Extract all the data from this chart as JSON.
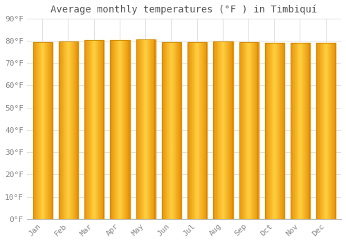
{
  "title": "Average monthly temperatures (°F ) in Timbiquí",
  "months": [
    "Jan",
    "Feb",
    "Mar",
    "Apr",
    "May",
    "Jun",
    "Jul",
    "Aug",
    "Sep",
    "Oct",
    "Nov",
    "Dec"
  ],
  "values": [
    79.3,
    79.7,
    80.4,
    80.4,
    80.6,
    79.5,
    79.3,
    79.7,
    79.5,
    79.1,
    79.0,
    79.0
  ],
  "bar_color_edge": "#E8940A",
  "bar_color_center": "#FFD040",
  "bar_edge_color": "#CC8800",
  "background_color": "#ffffff",
  "grid_color": "#e0e0e0",
  "ylim": [
    0,
    90
  ],
  "ytick_step": 10,
  "title_fontsize": 10,
  "tick_fontsize": 8,
  "tick_label_color": "#888888",
  "title_color": "#555555",
  "bar_width": 0.72
}
